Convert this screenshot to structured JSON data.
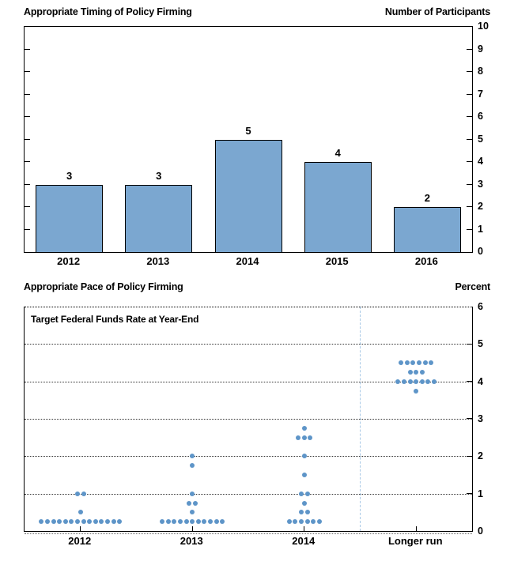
{
  "figure": {
    "background": "#ffffff",
    "frame_color": "#000000"
  },
  "chart_data": [
    {
      "type": "bar",
      "title": "Appropriate Timing of Policy Firming",
      "right_axis_title": "Number of Participants",
      "categories": [
        "2012",
        "2013",
        "2014",
        "2015",
        "2016"
      ],
      "values": [
        3,
        3,
        5,
        4,
        2
      ],
      "bar_labels": [
        "3",
        "3",
        "5",
        "4",
        "2"
      ],
      "ylim": [
        0,
        10
      ],
      "yticks": [
        0,
        1,
        2,
        3,
        4,
        5,
        6,
        7,
        8,
        9,
        10
      ],
      "ytick_side": "right",
      "grid": false,
      "legend": "none",
      "colors": {
        "bar_fill": "#7ba7d0",
        "bar_border": "#000000"
      }
    },
    {
      "type": "scatter",
      "title": "Appropriate Pace of Policy Firming",
      "right_axis_title": "Percent",
      "annotation": "Target Federal Funds Rate at Year-End",
      "categories": [
        "2012",
        "2013",
        "2014",
        "Longer run"
      ],
      "ylim": [
        0,
        6
      ],
      "yticks": [
        0,
        1,
        2,
        3,
        4,
        5,
        6
      ],
      "ytick_side": "right",
      "grid": true,
      "legend": "none",
      "separator": {
        "after_category": "2014",
        "style": "dashed",
        "color": "#a9c9e6"
      },
      "colors": {
        "dot": "#5e95c8"
      },
      "series": [
        {
          "category": "2012",
          "points": [
            {
              "rate": 1.0,
              "count": 2
            },
            {
              "rate": 0.5,
              "count": 1
            },
            {
              "rate": 0.25,
              "count": 14
            }
          ]
        },
        {
          "category": "2013",
          "points": [
            {
              "rate": 2.0,
              "count": 1
            },
            {
              "rate": 1.75,
              "count": 1
            },
            {
              "rate": 1.0,
              "count": 1
            },
            {
              "rate": 0.75,
              "count": 2
            },
            {
              "rate": 0.5,
              "count": 1
            },
            {
              "rate": 0.25,
              "count": 11
            }
          ]
        },
        {
          "category": "2014",
          "points": [
            {
              "rate": 2.75,
              "count": 1
            },
            {
              "rate": 2.5,
              "count": 3
            },
            {
              "rate": 2.0,
              "count": 1
            },
            {
              "rate": 1.5,
              "count": 1
            },
            {
              "rate": 1.0,
              "count": 2
            },
            {
              "rate": 0.75,
              "count": 1
            },
            {
              "rate": 0.5,
              "count": 2
            },
            {
              "rate": 0.25,
              "count": 6
            }
          ]
        },
        {
          "category": "Longer run",
          "points": [
            {
              "rate": 4.5,
              "count": 6
            },
            {
              "rate": 4.25,
              "count": 3
            },
            {
              "rate": 4.0,
              "count": 7
            },
            {
              "rate": 3.75,
              "count": 1
            }
          ]
        }
      ]
    }
  ]
}
